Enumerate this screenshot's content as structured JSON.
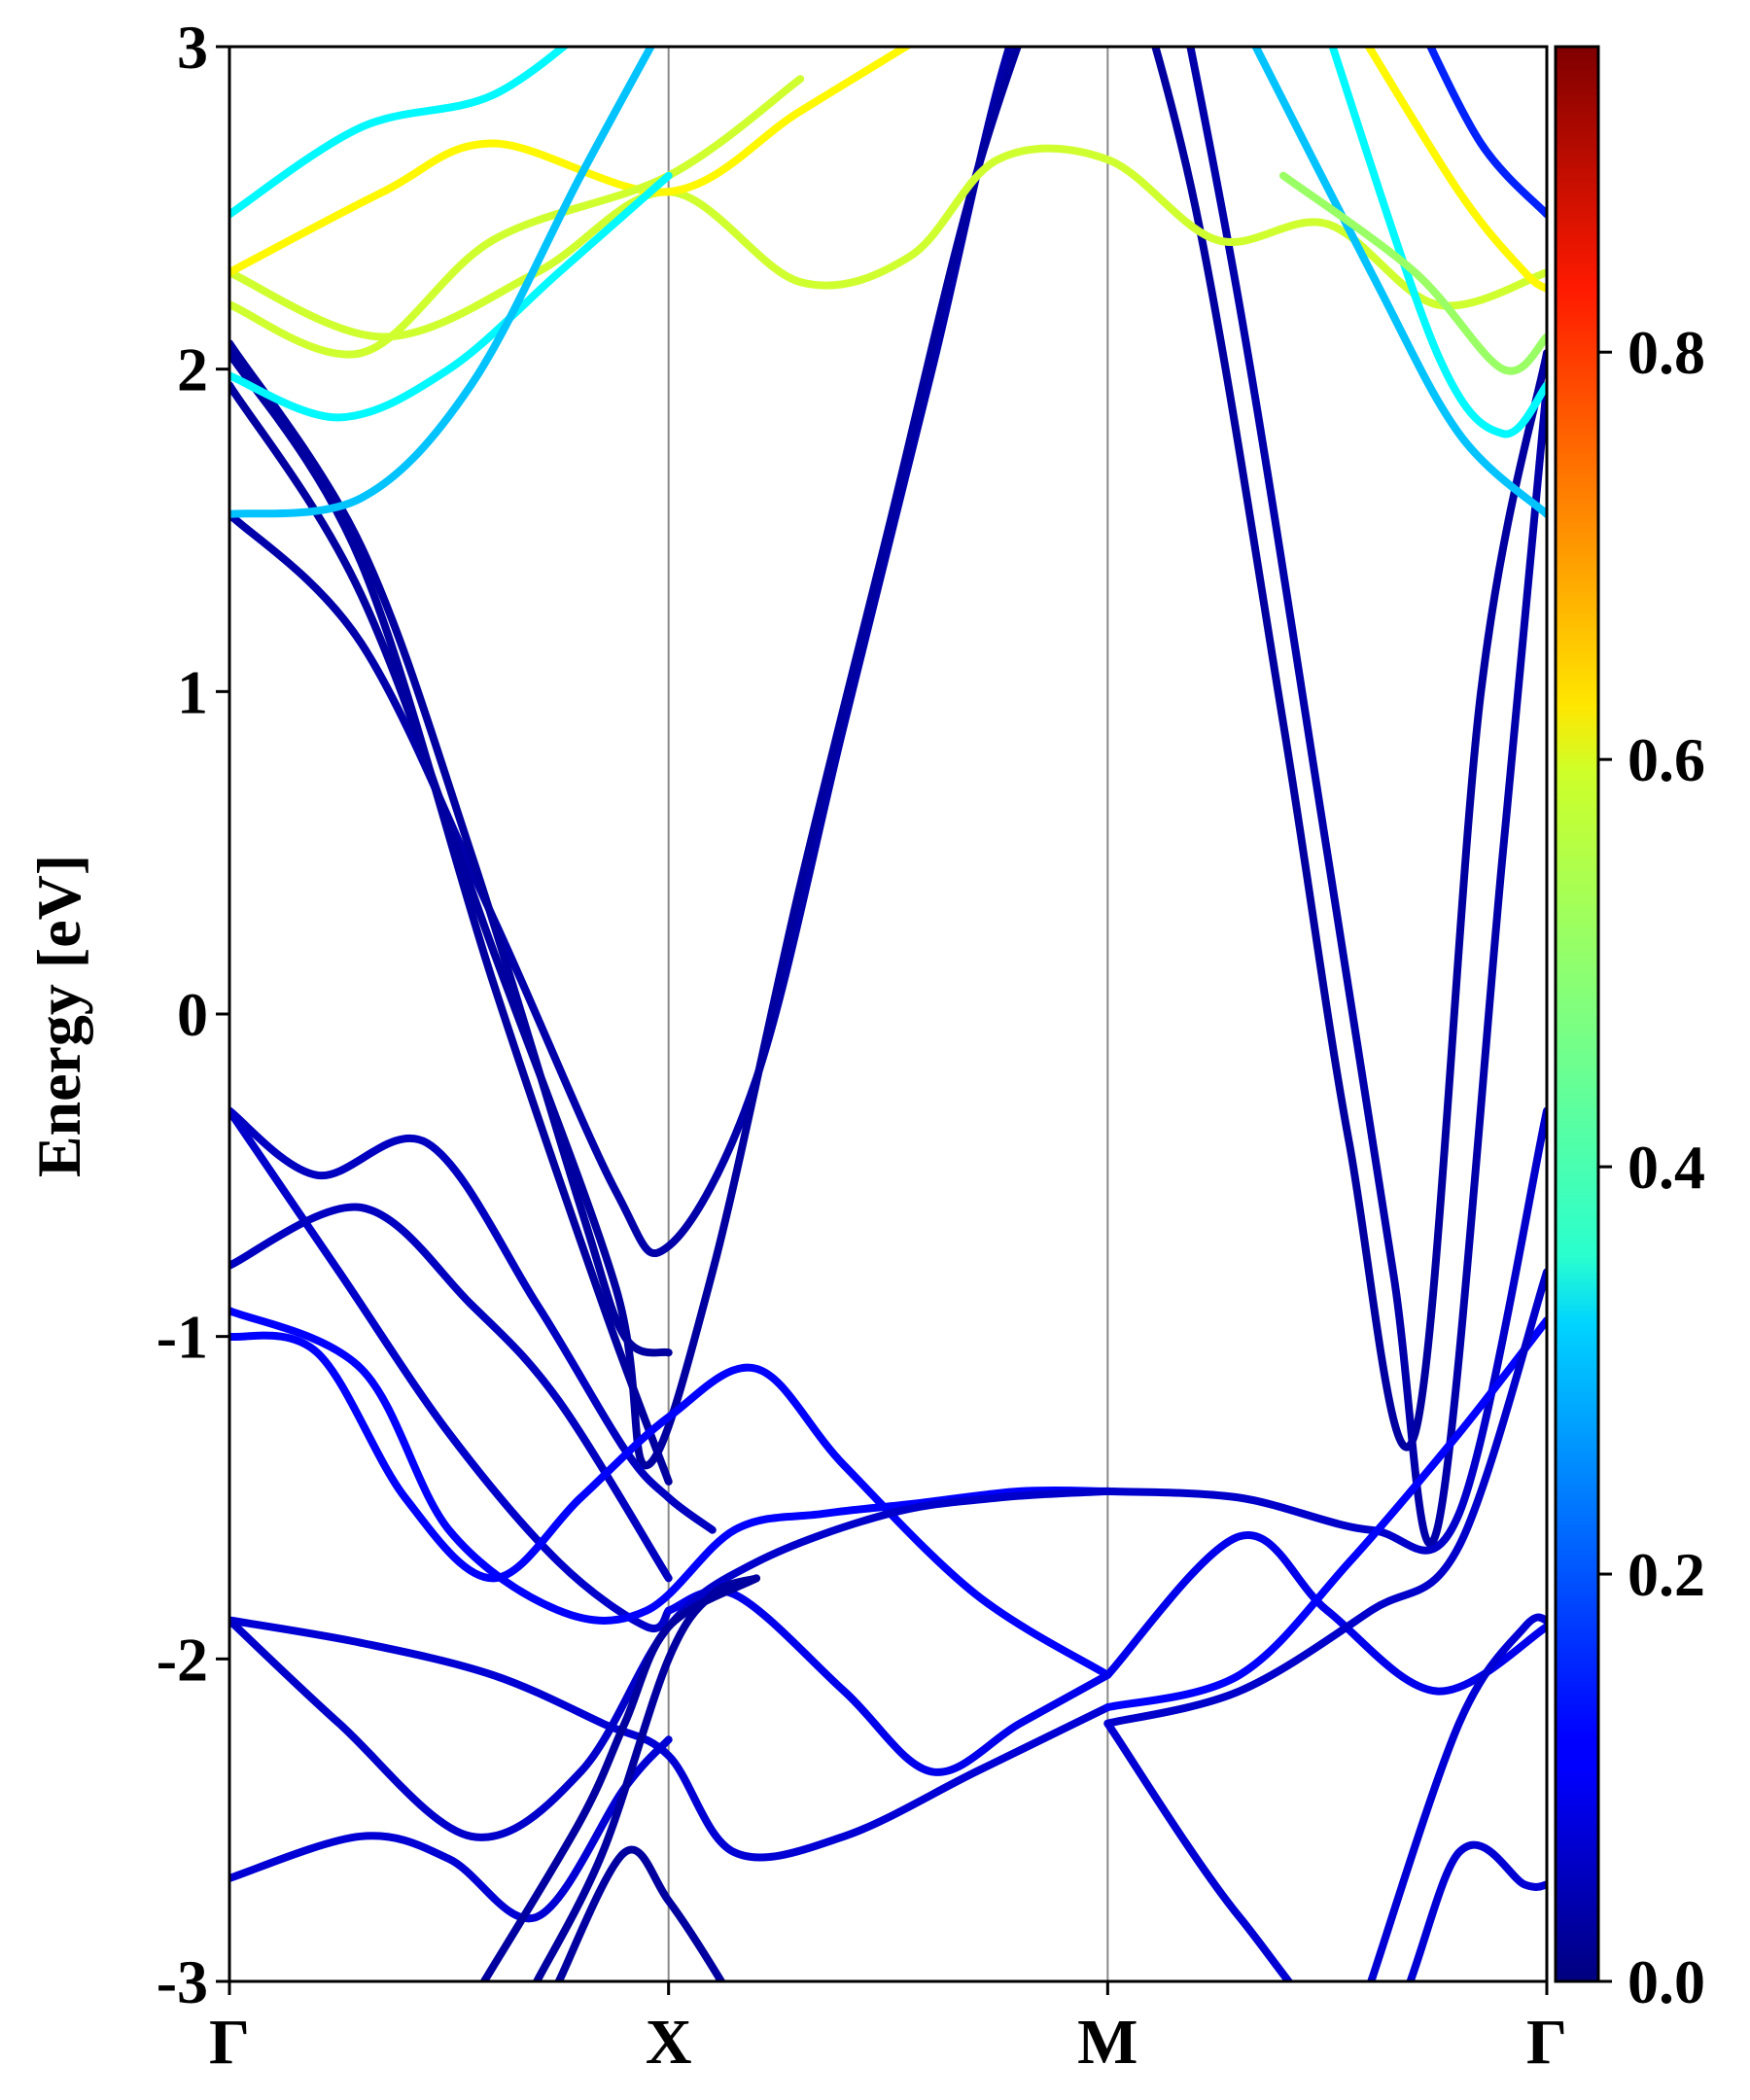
{
  "chart_data": {
    "type": "line",
    "ylabel": "Energy [eV]",
    "ylim": [
      -3,
      3
    ],
    "yticks": [
      3,
      2,
      1,
      0,
      -1,
      -2,
      -3
    ],
    "ytick_labels": [
      "3",
      "2",
      "1",
      "0",
      "-1",
      "-2",
      "-3"
    ],
    "xlim": [
      0,
      3
    ],
    "kpoints": [
      0,
      1,
      2,
      3
    ],
    "kpoint_labels": [
      "Γ",
      "X",
      "M",
      "Γ"
    ],
    "grid": "vertical lines at high-symmetry points",
    "colorbar": {
      "colormap": "jet",
      "range": [
        0,
        0.95
      ],
      "ticks": [
        0.0,
        0.2,
        0.4,
        0.6,
        0.8
      ],
      "tick_labels": [
        "0.0",
        "0.2",
        "0.4",
        "0.6",
        "0.8"
      ],
      "placement": "right"
    },
    "colors": {
      "frame": "#000000",
      "vline": "#8a8a8a",
      "bg": "#ffffff"
    },
    "bands": [
      {
        "x": [
          0,
          0.3,
          0.6,
          0.88,
          1.0,
          1.2,
          1.4,
          1.6,
          1.8,
          2.0
        ],
        "y": [
          1.55,
          1.15,
          0.3,
          -0.55,
          -0.72,
          -0.2,
          0.9,
          2.0,
          3.1,
          3.5
        ],
        "w": 0.04
      },
      {
        "x": [
          0,
          0.3,
          0.6,
          0.88,
          0.95,
          1.1,
          1.3,
          1.5,
          1.7,
          1.9
        ],
        "y": [
          1.95,
          1.3,
          0.2,
          -0.85,
          -1.4,
          -0.8,
          0.4,
          1.5,
          2.6,
          3.4
        ],
        "w": 0.03
      },
      {
        "x": [
          0,
          0.3,
          0.6,
          0.85,
          1.0
        ],
        "y": [
          2.05,
          1.4,
          0.1,
          -0.9,
          -1.45
        ],
        "w": 0.03
      },
      {
        "x": [
          0,
          0.3,
          0.55,
          0.8,
          0.9,
          1.0
        ],
        "y": [
          2.08,
          1.45,
          0.5,
          -0.6,
          -1.0,
          -1.05
        ],
        "w": 0.03
      },
      {
        "x": [
          2.0,
          2.2,
          2.4,
          2.55,
          2.7,
          2.85,
          3.0
        ],
        "y": [
          3.5,
          2.5,
          0.9,
          -0.4,
          -1.3,
          1.0,
          2.05
        ],
        "w": 0.03
      },
      {
        "x": [
          2.1,
          2.3,
          2.5,
          2.65,
          2.75,
          2.9,
          3.0
        ],
        "y": [
          3.6,
          2.2,
          0.5,
          -0.8,
          -1.6,
          0.5,
          1.95
        ],
        "w": 0.04
      },
      {
        "x": [
          0,
          0.2,
          0.45,
          0.7,
          0.9,
          1.0,
          1.1
        ],
        "y": [
          -0.3,
          -0.5,
          -0.4,
          -0.9,
          -1.35,
          -1.5,
          -1.6
        ],
        "w": 0.06
      },
      {
        "x": [
          0,
          0.25,
          0.5,
          0.75,
          0.95,
          1.0
        ],
        "y": [
          -0.3,
          -0.8,
          -1.3,
          -1.7,
          -1.9,
          -1.85
        ],
        "w": 0.07
      },
      {
        "x": [
          0,
          0.3,
          0.55,
          0.75,
          1.0
        ],
        "y": [
          -0.78,
          -0.6,
          -0.9,
          -1.2,
          -1.75
        ],
        "w": 0.06
      },
      {
        "x": [
          0,
          0.3,
          0.5,
          0.75,
          0.95,
          1.15,
          1.35,
          1.55,
          1.8,
          2.0
        ],
        "y": [
          -0.92,
          -1.1,
          -1.6,
          -1.85,
          -1.85,
          -1.6,
          -1.55,
          -1.52,
          -1.48,
          -1.48
        ],
        "w": 0.12
      },
      {
        "x": [
          0,
          0.2,
          0.4,
          0.6,
          0.8,
          1.0,
          1.2,
          1.4,
          1.7,
          2.0
        ],
        "y": [
          -1.0,
          -1.05,
          -1.5,
          -1.75,
          -1.5,
          -1.25,
          -1.1,
          -1.4,
          -1.8,
          -2.05
        ],
        "w": 0.12
      },
      {
        "x": [
          1.0,
          1.15,
          1.4,
          1.6,
          1.8,
          2.0
        ],
        "y": [
          -1.85,
          -1.8,
          -2.1,
          -2.35,
          -2.2,
          -2.05
        ],
        "w": 0.1
      },
      {
        "x": [
          0,
          0.3,
          0.6,
          0.85,
          1.0,
          1.15,
          1.4,
          1.7,
          2.0
        ],
        "y": [
          -1.88,
          -1.95,
          -2.05,
          -2.2,
          -2.3,
          -2.6,
          -2.55,
          -2.35,
          -2.15
        ],
        "w": 0.08
      },
      {
        "x": [
          0,
          0.25,
          0.55,
          0.8,
          1.0,
          1.2,
          1.5,
          1.75,
          2.0
        ],
        "y": [
          -1.88,
          -2.2,
          -2.55,
          -2.35,
          -1.9,
          -1.7,
          -1.55,
          -1.5,
          -1.48
        ],
        "w": 0.07
      },
      {
        "x": [
          0,
          0.3,
          0.5,
          0.7,
          0.9,
          1.0
        ],
        "y": [
          -2.68,
          -2.55,
          -2.62,
          -2.8,
          -2.4,
          -2.25
        ],
        "w": 0.08
      },
      {
        "x": [
          0.58,
          0.8,
          0.9,
          1.0,
          1.2
        ],
        "y": [
          -3.0,
          -2.5,
          -2.2,
          -1.9,
          -1.75
        ],
        "w": 0.03
      },
      {
        "x": [
          0.7,
          0.85,
          1.0,
          1.1,
          1.2
        ],
        "y": [
          -3.0,
          -2.6,
          -2.0,
          -1.8,
          -1.75
        ],
        "w": 0.03
      },
      {
        "x": [
          0.75,
          0.9,
          1.0,
          1.12,
          1.2
        ],
        "y": [
          -3.0,
          -2.6,
          -2.75,
          -3.0,
          -3.2
        ],
        "w": 0.03
      },
      {
        "x": [
          2.0,
          2.3,
          2.6,
          2.8,
          3.0
        ],
        "y": [
          -1.48,
          -1.5,
          -1.6,
          -1.55,
          -0.3
        ],
        "w": 0.07
      },
      {
        "x": [
          2.0,
          2.3,
          2.5,
          2.75,
          3.0
        ],
        "y": [
          -2.05,
          -1.62,
          -1.85,
          -2.1,
          -1.9
        ],
        "w": 0.1
      },
      {
        "x": [
          2.0,
          2.3,
          2.55,
          2.8,
          3.0
        ],
        "y": [
          -2.15,
          -2.05,
          -1.7,
          -1.3,
          -0.95
        ],
        "w": 0.12
      },
      {
        "x": [
          2.0,
          2.3,
          2.6,
          2.8,
          3.0
        ],
        "y": [
          -2.2,
          -2.1,
          -1.85,
          -1.65,
          -0.8
        ],
        "w": 0.07
      },
      {
        "x": [
          2.0,
          2.3,
          2.6,
          2.8,
          2.95,
          3.0
        ],
        "y": [
          -2.2,
          -2.8,
          -3.2,
          -2.6,
          -2.7,
          -2.7
        ],
        "w": 0.08
      },
      {
        "x": [
          2.6,
          2.8,
          2.95,
          3.0
        ],
        "y": [
          -3.0,
          -2.2,
          -1.9,
          -1.88
        ],
        "w": 0.08
      },
      {
        "x": [
          0,
          0.35,
          0.7,
          1.0,
          1.3,
          1.55,
          1.75,
          2.0,
          2.25,
          2.5,
          2.75,
          3.0
        ],
        "y": [
          2.3,
          2.1,
          2.3,
          2.55,
          2.27,
          2.35,
          2.65,
          2.65,
          2.4,
          2.45,
          2.2,
          2.3
        ],
        "w": 0.55
      },
      {
        "x": [
          0,
          0.35,
          0.6,
          1.0,
          1.3,
          1.6
        ],
        "y": [
          2.3,
          2.55,
          2.7,
          2.55,
          2.8,
          3.05
        ],
        "w": 0.6
      },
      {
        "x": [
          0,
          0.3,
          0.6,
          1.0,
          1.3
        ],
        "y": [
          2.2,
          2.05,
          2.4,
          2.6,
          2.9
        ],
        "w": 0.55
      },
      {
        "x": [
          0,
          0.25,
          0.5,
          0.75,
          1.0
        ],
        "y": [
          1.98,
          1.85,
          2.0,
          2.3,
          2.6
        ],
        "w": 0.35
      },
      {
        "x": [
          0,
          0.3,
          0.55,
          0.8,
          1.0
        ],
        "y": [
          1.55,
          1.6,
          1.95,
          2.6,
          3.1
        ],
        "w": 0.3
      },
      {
        "x": [
          0,
          0.3,
          0.6,
          0.85
        ],
        "y": [
          2.48,
          2.75,
          2.85,
          3.1
        ],
        "w": 0.35
      },
      {
        "x": [
          2.3,
          2.6,
          2.8,
          3.0
        ],
        "y": [
          3.1,
          2.3,
          1.8,
          1.55
        ],
        "w": 0.3
      },
      {
        "x": [
          2.5,
          2.75,
          2.9,
          3.0
        ],
        "y": [
          3.05,
          2.05,
          1.8,
          1.95
        ],
        "w": 0.35
      },
      {
        "x": [
          2.4,
          2.7,
          2.9,
          3.0
        ],
        "y": [
          2.6,
          2.3,
          2.0,
          2.1
        ],
        "w": 0.5
      },
      {
        "x": [
          2.55,
          2.8,
          2.95,
          3.0
        ],
        "y": [
          3.1,
          2.55,
          2.3,
          2.25
        ],
        "w": 0.6
      },
      {
        "x": [
          2.7,
          2.85,
          3.0
        ],
        "y": [
          3.1,
          2.7,
          2.48
        ],
        "w": 0.15
      }
    ]
  }
}
